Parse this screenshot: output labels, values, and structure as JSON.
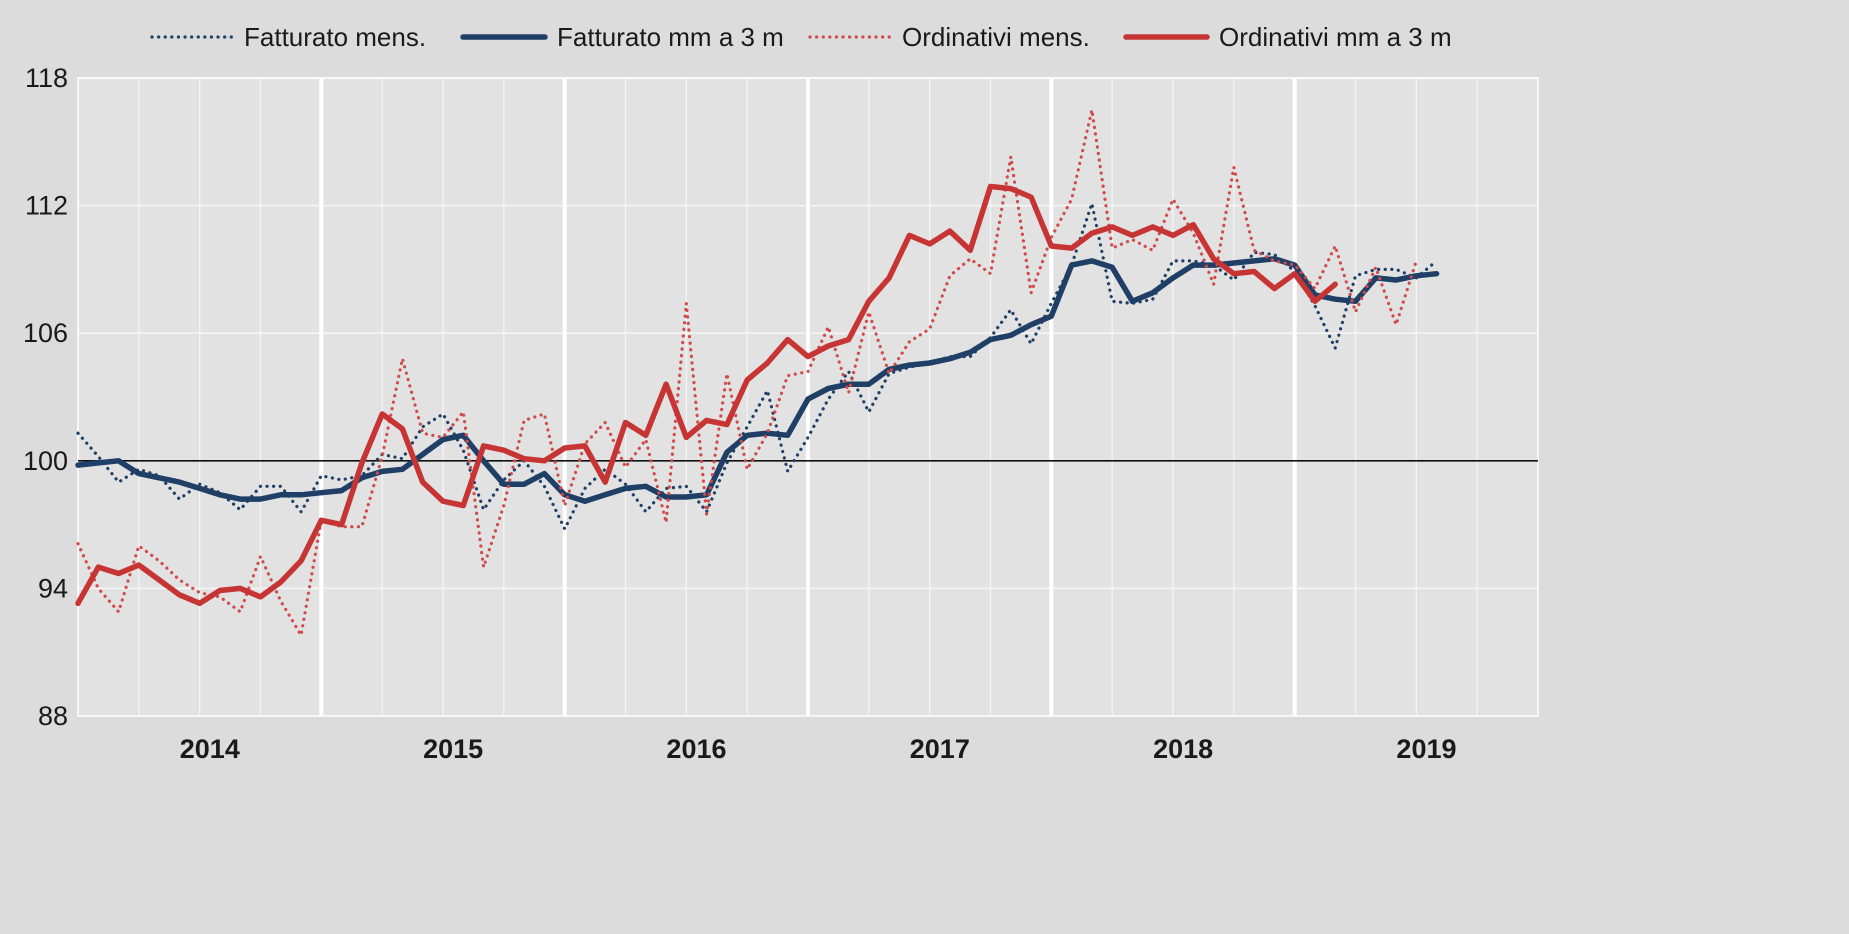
{
  "chart_data": {
    "type": "line",
    "title": "",
    "xlabel": "",
    "ylabel": "",
    "x_start": "2013-12",
    "x_range": [
      "2013-12",
      "2019-12"
    ],
    "ylim": [
      88,
      118
    ],
    "yticks": [
      88,
      94,
      100,
      106,
      112,
      118
    ],
    "xticks": [
      "2014",
      "2015",
      "2016",
      "2017",
      "2018",
      "2019"
    ],
    "reference_line": 100,
    "grid": true,
    "legend_position": "top",
    "series": [
      {
        "name": "Fatturato mens.",
        "color": "#1f3f66",
        "style": "dotted",
        "values": [
          101.3,
          100.2,
          99.0,
          99.6,
          99.3,
          98.2,
          98.9,
          98.5,
          97.7,
          98.8,
          98.8,
          97.6,
          99.3,
          99.1,
          99.3,
          100.3,
          100.1,
          101.6,
          102.2,
          100.5,
          97.7,
          99.1,
          100.0,
          98.8,
          96.8,
          98.7,
          99.6,
          98.9,
          97.6,
          98.7,
          98.8,
          97.6,
          99.9,
          101.6,
          103.3,
          99.5,
          101.1,
          102.9,
          104.2,
          102.3,
          104.1,
          104.4,
          104.6,
          104.9,
          104.9,
          105.8,
          107.1,
          105.5,
          107.4,
          109.2,
          112.1,
          107.5,
          107.4,
          107.6,
          109.4,
          109.4,
          109.2,
          108.5,
          109.8,
          109.7,
          108.9,
          107.3,
          105.3,
          108.7,
          109.0,
          109.0,
          108.6,
          109.4
        ]
      },
      {
        "name": "Fatturato mm a 3 m",
        "color": "#1f3f66",
        "style": "solid",
        "values": [
          99.8,
          99.9,
          100.0,
          99.4,
          99.2,
          99.0,
          98.7,
          98.4,
          98.2,
          98.2,
          98.4,
          98.4,
          98.5,
          98.6,
          99.2,
          99.5,
          99.6,
          100.3,
          101.0,
          101.2,
          100.0,
          98.9,
          98.9,
          99.4,
          98.4,
          98.1,
          98.4,
          98.7,
          98.8,
          98.3,
          98.3,
          98.4,
          100.4,
          101.2,
          101.3,
          101.2,
          102.9,
          103.4,
          103.6,
          103.6,
          104.3,
          104.5,
          104.6,
          104.8,
          105.1,
          105.7,
          105.9,
          106.4,
          106.8,
          109.2,
          109.4,
          109.1,
          107.5,
          107.9,
          108.6,
          109.2,
          109.2,
          109.3,
          109.4,
          109.5,
          109.2,
          107.8,
          107.6,
          107.5,
          108.6,
          108.5,
          108.7,
          108.8
        ]
      },
      {
        "name": "Ordinativi mens.",
        "color": "#d04a4a",
        "style": "dotted",
        "values": [
          96.1,
          94.0,
          92.9,
          96.0,
          95.3,
          94.4,
          93.8,
          93.6,
          92.9,
          95.5,
          93.4,
          91.8,
          97.2,
          96.9,
          96.9,
          100.2,
          104.8,
          101.3,
          101.1,
          102.3,
          95.0,
          97.9,
          101.9,
          102.2,
          97.9,
          100.8,
          101.8,
          99.7,
          101.0,
          97.1,
          107.4,
          97.5,
          104.1,
          99.6,
          101.3,
          104.0,
          104.2,
          106.3,
          103.2,
          107.0,
          104.1,
          105.6,
          106.2,
          108.7,
          109.5,
          108.8,
          114.3,
          107.9,
          110.5,
          112.3,
          116.5,
          110.0,
          110.4,
          109.9,
          112.3,
          110.7,
          108.3,
          113.8,
          109.9,
          109.4,
          109.2,
          108.1,
          110.1,
          107.0,
          109.1,
          106.4,
          109.4
        ]
      },
      {
        "name": "Ordinativi mm a 3 m",
        "color": "#c73434",
        "style": "solid",
        "values": [
          93.3,
          95.0,
          94.7,
          95.1,
          94.4,
          93.7,
          93.3,
          93.9,
          94.0,
          93.6,
          94.3,
          95.3,
          97.2,
          97.0,
          99.9,
          102.2,
          101.5,
          99.0,
          98.1,
          97.9,
          100.7,
          100.5,
          100.1,
          100.0,
          100.6,
          100.7,
          99.0,
          101.8,
          101.2,
          103.6,
          101.1,
          101.9,
          101.7,
          103.8,
          104.6,
          105.7,
          104.9,
          105.4,
          105.7,
          107.5,
          108.6,
          110.6,
          110.2,
          110.8,
          109.9,
          112.9,
          112.8,
          112.4,
          110.1,
          110.0,
          110.7,
          111.0,
          110.6,
          111.0,
          110.6,
          111.1,
          109.5,
          108.8,
          108.9,
          108.1,
          108.8,
          107.5,
          108.3
        ]
      }
    ]
  }
}
